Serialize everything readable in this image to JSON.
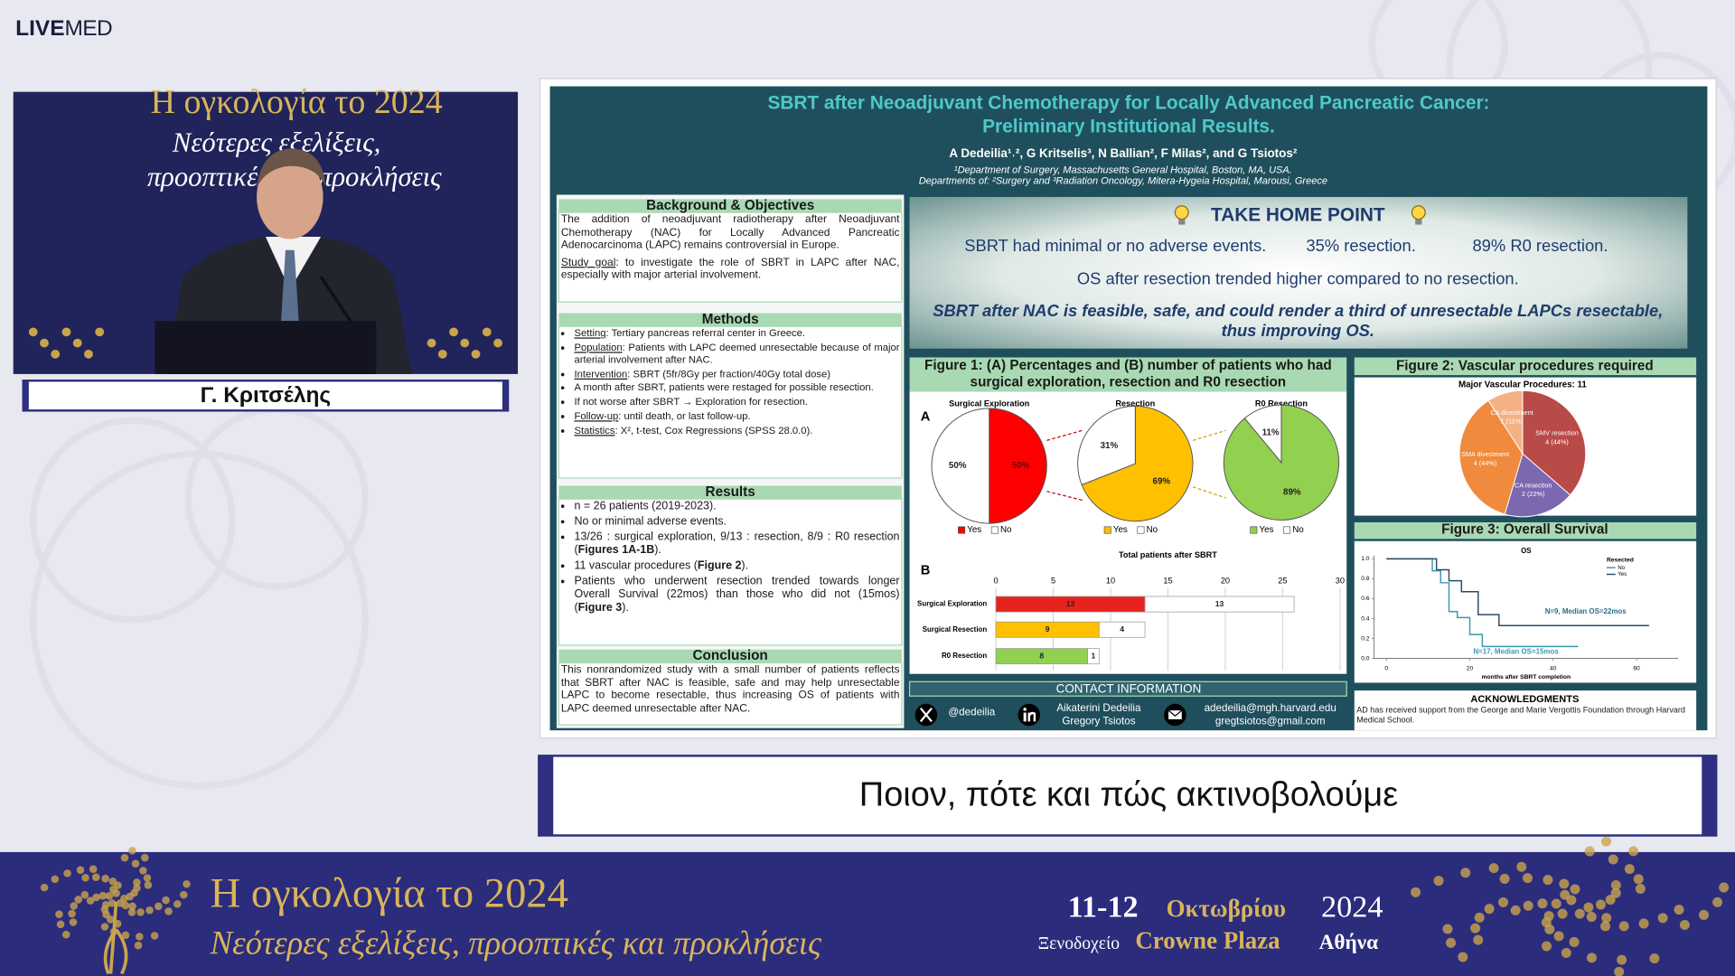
{
  "logo": {
    "live": "LIVE",
    "med": "MED"
  },
  "video": {
    "backdrop": [
      "Η ογκολογία το 2024",
      "Νεότερες εξελίξεις,",
      "προοπτικές και προκλήσεις"
    ],
    "speaker": "Γ. Κριτσέλης"
  },
  "poster": {
    "title": [
      "SBRT after Neoadjuvant Chemotherapy for Locally Advanced Pancreatic Cancer:",
      "Preliminary Institutional Results."
    ],
    "authors": "A Dedeilia¹˒², G Kritselis³, N Ballian², F Milas², and G Tsiotos²",
    "affiliations": [
      "¹Department of Surgery, Massachusetts General Hospital, Boston, MA, USA.",
      "Departments of: ²Surgery and ³Radiation Oncology, Mitera-Hygeia Hospital, Marousi, Greece"
    ],
    "background": {
      "heading": "Background & Objectives",
      "paragraphs": [
        [
          "The addition of neoadjuvant radiotherapy after Neoadjuvant Chemotherapy (NAC) for Locally Advanced Pancreatic Adenocarcinoma (LAPC) remains controversial in Europe."
        ],
        [
          {
            "u": "Study goal"
          },
          ": to investigate the role of SBRT in LAPC after NAC, especially with major arterial involvement."
        ]
      ]
    },
    "methods": {
      "heading": "Methods",
      "items": [
        [
          {
            "u": "Setting"
          },
          ": Tertiary pancreas referral center in Greece."
        ],
        [
          {
            "u": "Population"
          },
          ": Patients with LAPC deemed unresectable because of major arterial involvement after NAC."
        ],
        [
          {
            "u": "Intervention"
          },
          ": SBRT (5fr/8Gy per fraction/40Gy total dose)"
        ],
        [
          "A month after SBRT, patients were restaged for possible resection."
        ],
        [
          "If not worse after SBRT → Exploration for resection."
        ],
        [
          {
            "u": "Follow-up"
          },
          ": until death, or last follow-up."
        ],
        [
          {
            "u": "Statistics"
          },
          ": X², t-test, Cox Regressions (SPSS 28.0.0)."
        ]
      ]
    },
    "results": {
      "heading": "Results",
      "items": [
        [
          "n = 26 patients (2019-2023)."
        ],
        [
          "No or minimal adverse events."
        ],
        [
          "13/26 : surgical exploration, 9/13 : resection, 8/9 : R0 resection (",
          {
            "b": "Figures 1A-1B"
          },
          ")."
        ],
        [
          "11 vascular procedures (",
          {
            "b": "Figure 2"
          },
          ")."
        ],
        [
          "Patients who underwent resection trended towards longer Overall Survival (22mos) than those who did not (15mos) (",
          {
            "b": "Figure 3"
          },
          ")."
        ]
      ]
    },
    "conclusion": {
      "heading": "Conclusion",
      "paragraphs": [
        [
          "This nonrandomized study with a small number of patients reflects that SBRT after NAC is feasible, safe and may help unresectable LAPC to become resectable, thus increasing OS of patients with LAPC deemed unresectable after NAC."
        ]
      ]
    },
    "take_home": {
      "heading": "TAKE HOME POINT",
      "line1": [
        "SBRT had minimal or no adverse events.",
        "35% resection.",
        "89% R0 resection."
      ],
      "line2": "OS after resection trended higher compared to no resection.",
      "conclusion": "SBRT after NAC is feasible, safe, and could render a third of unresectable LAPCs resectable, thus improving OS."
    },
    "figure1": {
      "heading": "Figure 1: (A) Percentages and (B) number of patients who had surgical exploration, resection and R0 resection",
      "panel_a": "A",
      "panel_b": "B",
      "pies": [
        {
          "type": "pie",
          "title": "Surgical Exploration",
          "values": [
            50,
            50
          ],
          "value_labels": [
            "50%",
            "50%"
          ],
          "colors": [
            "#ff0000",
            "#ffffff"
          ],
          "legend": [
            "Yes",
            "No"
          ]
        },
        {
          "type": "pie",
          "title": "Resection",
          "values": [
            69,
            31
          ],
          "value_labels": [
            "69%",
            "31%"
          ],
          "colors": [
            "#ffc000",
            "#ffffff"
          ],
          "legend": [
            "Yes",
            "No"
          ]
        },
        {
          "type": "pie",
          "title": "R0 Resection",
          "values": [
            89,
            11
          ],
          "value_labels": [
            "89%",
            "11%"
          ],
          "colors": [
            "#92d050",
            "#ffffff"
          ],
          "legend": [
            "Yes",
            "No"
          ]
        }
      ],
      "bar": {
        "type": "bar",
        "title": "Total patients after SBRT",
        "categories": [
          "Surgical Exploration",
          "Surgical Resection",
          "R0 Resection"
        ],
        "xlim": [
          0,
          30
        ],
        "xticks": [
          0,
          5,
          10,
          15,
          20,
          25,
          30
        ],
        "grid": true,
        "series": [
          {
            "colors": [
              "#e8231d",
              "#ffc000",
              "#92d050"
            ],
            "values": [
              13,
              9,
              8
            ]
          },
          {
            "color": "#ffffff",
            "values": [
              13,
              4,
              1
            ]
          }
        ]
      }
    },
    "figure2": {
      "heading": "Figure 2: Vascular procedures required",
      "chart": {
        "type": "pie",
        "title": "Major Vascular Procedures: 11",
        "labels": [
          "SMV resection",
          "CA resection",
          "SMA divestment",
          "CA divestment"
        ],
        "values": [
          4,
          2,
          4,
          1
        ],
        "value_labels": [
          "4 (44%)",
          "2 (22%)",
          "4 (44%)",
          "1 (11%)"
        ],
        "colors": [
          "#b84a48",
          "#7b68b0",
          "#f08a3c",
          "#f4b183"
        ]
      }
    },
    "figure3": {
      "heading": "Figure 3: Overall Survival",
      "chart": {
        "type": "line",
        "title": "OS",
        "x_label": "months after SBRT completion",
        "legend_title": "Resected",
        "xlim": [
          -3,
          70
        ],
        "xticks": [
          0,
          20,
          40,
          60
        ],
        "ylim": [
          0,
          1
        ],
        "yticks": [
          {
            "value": 0,
            "label": "0.0"
          },
          {
            "value": 0.2,
            "label": "0.2"
          },
          {
            "value": 0.4,
            "label": "0.4"
          },
          {
            "value": 0.6,
            "label": "0.6"
          },
          {
            "value": 0.8,
            "label": "0.8"
          },
          {
            "value": 1,
            "label": "1.0"
          }
        ],
        "series": [
          {
            "name": "No",
            "color": "#3a9ab0",
            "x": [
              0,
              11,
              11,
              13,
              13,
              15,
              15,
              17,
              17,
              20,
              20,
              23,
              23,
              46
            ],
            "values": [
              1,
              1,
              0.88,
              0.88,
              0.76,
              0.76,
              0.47,
              0.47,
              0.41,
              0.41,
              0.24,
              0.24,
              0.12,
              0.12
            ]
          },
          {
            "name": "Yes",
            "color": "#2d4a6b",
            "x": [
              0,
              12,
              12,
              15,
              15,
              18,
              18,
              22,
              22,
              27,
              27,
              63
            ],
            "values": [
              1,
              1,
              0.89,
              0.89,
              0.78,
              0.78,
              0.67,
              0.67,
              0.44,
              0.44,
              0.33,
              0.33
            ]
          }
        ],
        "annotations": [
          "N=9, Median OS=22mos",
          "N=17, Median OS=15mos"
        ]
      }
    },
    "contact": {
      "heading": "CONTACT INFORMATION",
      "handle": "@dedeilia",
      "names": [
        "Aikaterini Dedeilia",
        "Gregory Tsiotos"
      ],
      "emails": [
        "adedeilia@mgh.harvard.edu",
        "gregtsiotos@gmail.com"
      ]
    },
    "acknowledgments": {
      "heading": "ACKNOWLEDGMENTS",
      "text": "AD has received support from the George and Marie Vergottis Foundation through Harvard Medical School."
    }
  },
  "caption": "Ποιον, πότε και πώς ακτινοβολούμε",
  "footer": {
    "title": "Η ογκολογία το 2024",
    "subtitle": "Νεότερες εξελίξεις, προοπτικές και προκλήσεις",
    "dates": "11-12",
    "month": "Οκτωβρίου",
    "year": "2024",
    "venue_prefix": "Ξενοδοχείο",
    "venue": "Crowne Plaza",
    "city": "Αθήνα"
  }
}
